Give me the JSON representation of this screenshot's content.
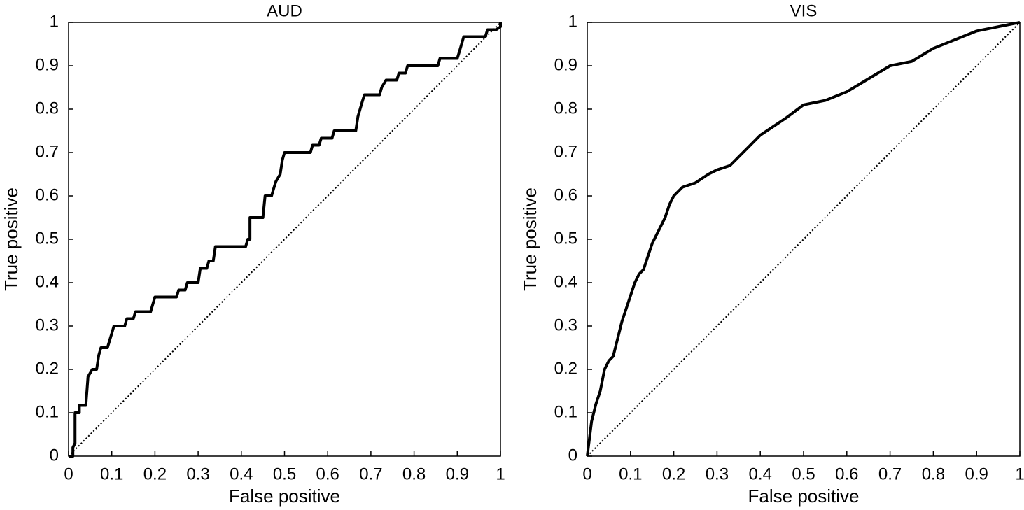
{
  "chart_data": [
    {
      "type": "line",
      "title": "AUD",
      "xlabel": "False positive",
      "ylabel": "True positive",
      "xlim": [
        0,
        1
      ],
      "ylim": [
        0,
        1
      ],
      "xticks": [
        0,
        0.1,
        0.2,
        0.3,
        0.4,
        0.5,
        0.6,
        0.7,
        0.8,
        0.9,
        1
      ],
      "yticks": [
        0,
        0.1,
        0.2,
        0.3,
        0.4,
        0.5,
        0.6,
        0.7,
        0.8,
        0.9,
        1
      ],
      "series": [
        {
          "color": "#000000",
          "linestyle": "solid",
          "x": [
            0,
            0.01,
            0.01,
            0.015,
            0.015,
            0.025,
            0.025,
            0.04,
            0.045,
            0.055,
            0.065,
            0.07,
            0.075,
            0.09,
            0.1,
            0.105,
            0.13,
            0.135,
            0.15,
            0.155,
            0.19,
            0.2,
            0.25,
            0.255,
            0.27,
            0.275,
            0.3,
            0.305,
            0.32,
            0.325,
            0.335,
            0.34,
            0.41,
            0.415,
            0.42,
            0.42,
            0.45,
            0.455,
            0.47,
            0.475,
            0.48,
            0.49,
            0.495,
            0.5,
            0.56,
            0.565,
            0.58,
            0.585,
            0.61,
            0.615,
            0.665,
            0.67,
            0.675,
            0.68,
            0.685,
            0.72,
            0.725,
            0.735,
            0.76,
            0.765,
            0.78,
            0.785,
            0.855,
            0.86,
            0.9,
            0.905,
            0.91,
            0.915,
            0.965,
            0.97,
            0.99,
            1,
            1
          ],
          "values": [
            0,
            0,
            0.02,
            0.03,
            0.1,
            0.1,
            0.117,
            0.117,
            0.183,
            0.2,
            0.2,
            0.233,
            0.25,
            0.25,
            0.283,
            0.3,
            0.3,
            0.317,
            0.317,
            0.333,
            0.333,
            0.367,
            0.367,
            0.383,
            0.383,
            0.4,
            0.4,
            0.433,
            0.433,
            0.45,
            0.45,
            0.483,
            0.483,
            0.5,
            0.5,
            0.55,
            0.55,
            0.6,
            0.6,
            0.617,
            0.633,
            0.65,
            0.683,
            0.7,
            0.7,
            0.717,
            0.717,
            0.733,
            0.733,
            0.75,
            0.75,
            0.783,
            0.8,
            0.817,
            0.833,
            0.833,
            0.85,
            0.867,
            0.867,
            0.883,
            0.883,
            0.9,
            0.9,
            0.917,
            0.917,
            0.933,
            0.95,
            0.967,
            0.967,
            0.983,
            0.983,
            0.99,
            1
          ]
        },
        {
          "color": "#000000",
          "linestyle": "dotted",
          "x": [
            0,
            1
          ],
          "values": [
            0,
            1
          ]
        }
      ]
    },
    {
      "type": "line",
      "title": "VIS",
      "xlabel": "False positive",
      "ylabel": "True positive",
      "xlim": [
        0,
        1
      ],
      "ylim": [
        0,
        1
      ],
      "xticks": [
        0,
        0.1,
        0.2,
        0.3,
        0.4,
        0.5,
        0.6,
        0.7,
        0.8,
        0.9,
        1
      ],
      "yticks": [
        0,
        0.1,
        0.2,
        0.3,
        0.4,
        0.5,
        0.6,
        0.7,
        0.8,
        0.9,
        1
      ],
      "series": [
        {
          "color": "#000000",
          "linestyle": "solid",
          "x": [
            0,
            0.005,
            0.01,
            0.02,
            0.03,
            0.04,
            0.05,
            0.06,
            0.07,
            0.08,
            0.09,
            0.1,
            0.11,
            0.12,
            0.13,
            0.14,
            0.15,
            0.16,
            0.17,
            0.18,
            0.19,
            0.2,
            0.22,
            0.25,
            0.28,
            0.3,
            0.33,
            0.35,
            0.37,
            0.4,
            0.43,
            0.46,
            0.5,
            0.55,
            0.6,
            0.65,
            0.7,
            0.75,
            0.8,
            0.85,
            0.9,
            0.95,
            1
          ],
          "values": [
            0,
            0.04,
            0.08,
            0.12,
            0.15,
            0.2,
            0.22,
            0.23,
            0.27,
            0.31,
            0.34,
            0.37,
            0.4,
            0.42,
            0.43,
            0.46,
            0.49,
            0.51,
            0.53,
            0.55,
            0.58,
            0.6,
            0.62,
            0.63,
            0.65,
            0.66,
            0.67,
            0.69,
            0.71,
            0.74,
            0.76,
            0.78,
            0.81,
            0.82,
            0.84,
            0.87,
            0.9,
            0.91,
            0.94,
            0.96,
            0.98,
            0.99,
            1
          ]
        },
        {
          "color": "#000000",
          "linestyle": "dotted",
          "x": [
            0,
            1
          ],
          "values": [
            0,
            1
          ]
        }
      ]
    }
  ]
}
